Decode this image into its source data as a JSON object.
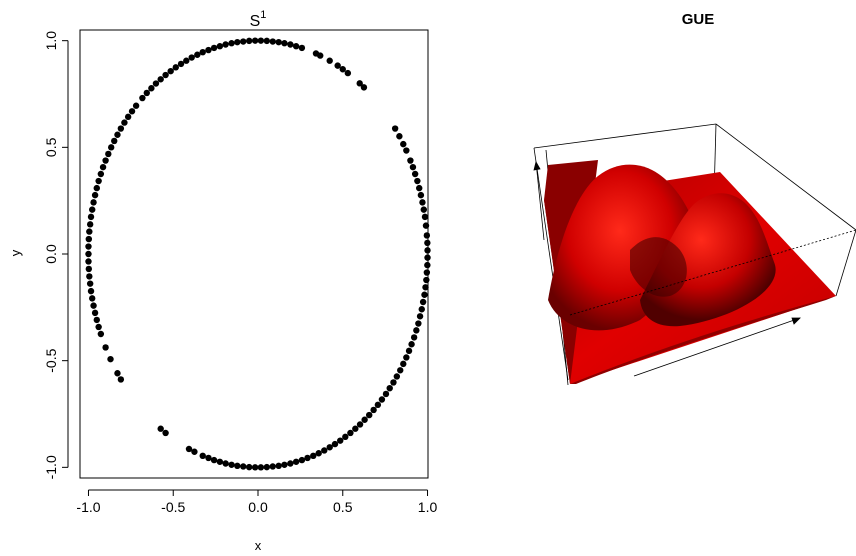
{
  "chart_data": [
    {
      "type": "scatter",
      "title": "S",
      "title_superscript": "1",
      "xlabel": "x",
      "ylabel": "y",
      "xlim": [
        -1.05,
        1.05
      ],
      "ylim": [
        -1.05,
        1.05
      ],
      "x_ticks": [
        -1.0,
        -0.5,
        0.0,
        0.5,
        1.0
      ],
      "x_tick_labels": [
        "-1.0",
        "-0.5",
        "0.0",
        "0.5",
        "1.0"
      ],
      "y_ticks": [
        -1.0,
        -0.5,
        0.0,
        0.5,
        1.0
      ],
      "y_tick_labels": [
        "-1.0",
        "-0.5",
        "0.0",
        "0.5",
        "1.0"
      ],
      "grid": false,
      "marker_color": "#000000",
      "points": [
        [
          0.996,
          0.087
        ],
        [
          0.991,
          0.133
        ],
        [
          0.985,
          0.174
        ],
        [
          0.978,
          0.208
        ],
        [
          0.97,
          0.242
        ],
        [
          0.961,
          0.276
        ],
        [
          0.951,
          0.309
        ],
        [
          0.94,
          0.342
        ],
        [
          0.927,
          0.375
        ],
        [
          0.914,
          0.407
        ],
        [
          0.899,
          0.438
        ],
        [
          0.875,
          0.485
        ],
        [
          0.857,
          0.515
        ],
        [
          0.834,
          0.552
        ],
        [
          0.809,
          0.588
        ],
        [
          0.625,
          0.781
        ],
        [
          0.6,
          0.8
        ],
        [
          0.53,
          0.848
        ],
        [
          0.5,
          0.866
        ],
        [
          0.47,
          0.883
        ],
        [
          0.423,
          0.906
        ],
        [
          0.367,
          0.93
        ],
        [
          0.342,
          0.94
        ],
        [
          0.259,
          0.966
        ],
        [
          0.225,
          0.974
        ],
        [
          0.191,
          0.982
        ],
        [
          0.156,
          0.988
        ],
        [
          0.122,
          0.993
        ],
        [
          0.087,
          0.996
        ],
        [
          0.052,
          0.999
        ],
        [
          0.017,
          1.0
        ],
        [
          -0.017,
          1.0
        ],
        [
          -0.052,
          0.999
        ],
        [
          -0.087,
          0.996
        ],
        [
          -0.122,
          0.993
        ],
        [
          -0.156,
          0.988
        ],
        [
          -0.191,
          0.982
        ],
        [
          -0.225,
          0.974
        ],
        [
          -0.259,
          0.966
        ],
        [
          -0.292,
          0.956
        ],
        [
          -0.326,
          0.946
        ],
        [
          -0.358,
          0.934
        ],
        [
          -0.391,
          0.921
        ],
        [
          -0.423,
          0.906
        ],
        [
          -0.454,
          0.891
        ],
        [
          -0.485,
          0.875
        ],
        [
          -0.515,
          0.857
        ],
        [
          -0.545,
          0.839
        ],
        [
          -0.574,
          0.819
        ],
        [
          -0.602,
          0.799
        ],
        [
          -0.629,
          0.777
        ],
        [
          -0.656,
          0.755
        ],
        [
          -0.682,
          0.731
        ],
        [
          -0.719,
          0.695
        ],
        [
          -0.743,
          0.669
        ],
        [
          -0.766,
          0.643
        ],
        [
          -0.788,
          0.616
        ],
        [
          -0.809,
          0.588
        ],
        [
          -0.829,
          0.559
        ],
        [
          -0.848,
          0.53
        ],
        [
          -0.866,
          0.5
        ],
        [
          -0.883,
          0.469
        ],
        [
          -0.899,
          0.438
        ],
        [
          -0.914,
          0.407
        ],
        [
          -0.927,
          0.375
        ],
        [
          -0.94,
          0.342
        ],
        [
          -0.951,
          0.309
        ],
        [
          -0.961,
          0.276
        ],
        [
          -0.97,
          0.242
        ],
        [
          -0.978,
          0.208
        ],
        [
          -0.985,
          0.174
        ],
        [
          -0.99,
          0.139
        ],
        [
          -0.995,
          0.105
        ],
        [
          -0.998,
          0.07
        ],
        [
          -1.0,
          0.035
        ],
        [
          -1.0,
          0.0
        ],
        [
          -1.0,
          -0.035
        ],
        [
          -0.998,
          -0.07
        ],
        [
          -0.995,
          -0.105
        ],
        [
          -0.99,
          -0.139
        ],
        [
          -0.985,
          -0.174
        ],
        [
          -0.978,
          -0.208
        ],
        [
          -0.97,
          -0.242
        ],
        [
          -0.961,
          -0.276
        ],
        [
          -0.951,
          -0.309
        ],
        [
          -0.94,
          -0.342
        ],
        [
          -0.927,
          -0.375
        ],
        [
          -0.899,
          -0.438
        ],
        [
          -0.87,
          -0.493
        ],
        [
          -0.829,
          -0.559
        ],
        [
          -0.809,
          -0.588
        ],
        [
          -0.574,
          -0.819
        ],
        [
          -0.545,
          -0.839
        ],
        [
          -0.407,
          -0.914
        ],
        [
          -0.375,
          -0.927
        ],
        [
          -0.326,
          -0.946
        ],
        [
          -0.292,
          -0.956
        ],
        [
          -0.259,
          -0.966
        ],
        [
          -0.225,
          -0.974
        ],
        [
          -0.191,
          -0.982
        ],
        [
          -0.156,
          -0.988
        ],
        [
          -0.122,
          -0.993
        ],
        [
          -0.087,
          -0.996
        ],
        [
          -0.052,
          -0.999
        ],
        [
          -0.017,
          -1.0
        ],
        [
          0.017,
          -1.0
        ],
        [
          0.052,
          -0.999
        ],
        [
          0.087,
          -0.996
        ],
        [
          0.122,
          -0.993
        ],
        [
          0.156,
          -0.988
        ],
        [
          0.191,
          -0.982
        ],
        [
          0.225,
          -0.974
        ],
        [
          0.259,
          -0.966
        ],
        [
          0.292,
          -0.956
        ],
        [
          0.326,
          -0.946
        ],
        [
          0.358,
          -0.934
        ],
        [
          0.391,
          -0.921
        ],
        [
          0.423,
          -0.906
        ],
        [
          0.454,
          -0.891
        ],
        [
          0.485,
          -0.875
        ],
        [
          0.515,
          -0.857
        ],
        [
          0.545,
          -0.839
        ],
        [
          0.574,
          -0.819
        ],
        [
          0.602,
          -0.799
        ],
        [
          0.629,
          -0.777
        ],
        [
          0.656,
          -0.755
        ],
        [
          0.682,
          -0.731
        ],
        [
          0.707,
          -0.707
        ],
        [
          0.731,
          -0.682
        ],
        [
          0.755,
          -0.656
        ],
        [
          0.777,
          -0.629
        ],
        [
          0.799,
          -0.602
        ],
        [
          0.819,
          -0.574
        ],
        [
          0.839,
          -0.545
        ],
        [
          0.857,
          -0.515
        ],
        [
          0.875,
          -0.485
        ],
        [
          0.891,
          -0.454
        ],
        [
          0.906,
          -0.423
        ],
        [
          0.921,
          -0.391
        ],
        [
          0.934,
          -0.358
        ],
        [
          0.946,
          -0.326
        ],
        [
          0.956,
          -0.292
        ],
        [
          0.966,
          -0.259
        ],
        [
          0.974,
          -0.225
        ],
        [
          0.982,
          -0.191
        ],
        [
          0.988,
          -0.156
        ],
        [
          0.993,
          -0.122
        ],
        [
          0.996,
          -0.087
        ],
        [
          0.999,
          -0.052
        ],
        [
          1.0,
          -0.017
        ],
        [
          1.0,
          0.017
        ],
        [
          0.999,
          0.052
        ]
      ]
    },
    {
      "type": "surface-3d",
      "title": "GUE",
      "surface_color": "#e00000"
    }
  ]
}
